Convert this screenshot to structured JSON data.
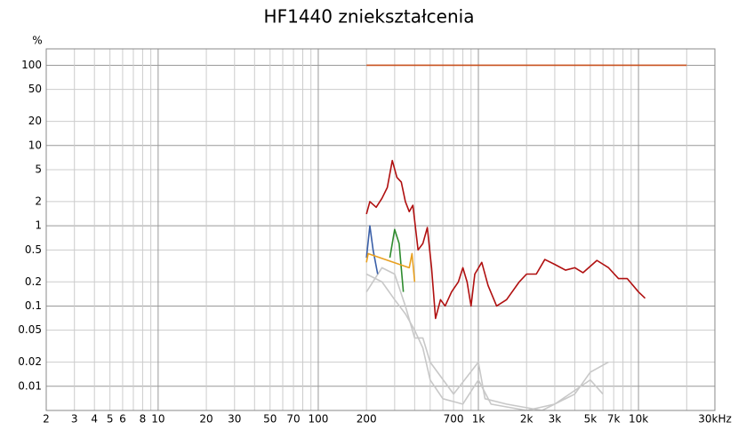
{
  "chart_data": {
    "type": "line",
    "title": "HF1440 zniekształcenia",
    "y_label": "%",
    "log_x": true,
    "log_y": true,
    "grid": true,
    "xlim": [
      2,
      30000
    ],
    "ylim": [
      0.005,
      160
    ],
    "xticks": [
      2,
      3,
      4,
      5,
      6,
      8,
      10,
      20,
      30,
      50,
      70,
      100,
      200,
      700,
      {
        "value": 1000,
        "label": "1k"
      },
      {
        "value": 2000,
        "label": "2k"
      },
      {
        "value": 3000,
        "label": "3k"
      },
      {
        "value": 5000,
        "label": "5k"
      },
      {
        "value": 7000,
        "label": "7k"
      },
      {
        "value": 10000,
        "label": "10k"
      },
      {
        "value": 30000,
        "label": "30kHz"
      }
    ],
    "x_minor_ticks": [
      7,
      9,
      40,
      60,
      80,
      90,
      300,
      400,
      500,
      600,
      800,
      900,
      4000,
      6000,
      8000,
      9000,
      20000
    ],
    "yticks": [
      100,
      50,
      20,
      10,
      5,
      2,
      1,
      0.5,
      0.2,
      0.1,
      0.05,
      0.02,
      0.01
    ],
    "series": [
      {
        "color": "#c8c8c8",
        "x": [
          200,
          250,
          300,
          350,
          400,
          450,
          500,
          600,
          800,
          1000,
          1200,
          2000,
          3000,
          5000,
          6000
        ],
        "values": [
          0.25,
          0.2,
          0.12,
          0.08,
          0.05,
          0.03,
          0.012,
          0.007,
          0.006,
          0.012,
          0.006,
          0.005,
          0.006,
          0.012,
          0.008
        ]
      },
      {
        "color": "#c8c8c8",
        "x": [
          200,
          250,
          300,
          350,
          400,
          450,
          500,
          700,
          1000,
          1100,
          1500,
          2500,
          4000,
          5000,
          6500
        ],
        "values": [
          0.15,
          0.3,
          0.25,
          0.1,
          0.04,
          0.04,
          0.02,
          0.008,
          0.02,
          0.007,
          0.006,
          0.005,
          0.008,
          0.015,
          0.02
        ]
      },
      {
        "color": "#3a5fa8",
        "x": [
          200,
          210,
          220,
          235
        ],
        "values": [
          0.4,
          1,
          0.5,
          0.25
        ]
      },
      {
        "color": "#2e8b2e",
        "x": [
          280,
          300,
          320,
          340
        ],
        "values": [
          0.4,
          0.9,
          0.6,
          0.15
        ]
      },
      {
        "color": "#e8a020",
        "x": [
          200,
          205,
          370,
          385,
          400
        ],
        "values": [
          0.35,
          0.45,
          0.3,
          0.45,
          0.2
        ]
      },
      {
        "color": "#b01010",
        "x": [
          200,
          210,
          230,
          250,
          270,
          290,
          310,
          330,
          350,
          370,
          390,
          420,
          450,
          480,
          510,
          540,
          580,
          620,
          680,
          750,
          800,
          850,
          900,
          950,
          1050,
          1150,
          1300,
          1500,
          1800,
          2000,
          2300,
          2600,
          3000,
          3500,
          4000,
          4500,
          5500,
          6500,
          7500,
          8500,
          10000,
          11000
        ],
        "values": [
          1.4,
          2,
          1.7,
          2.2,
          3,
          6.5,
          4,
          3.5,
          2,
          1.5,
          1.8,
          0.5,
          0.6,
          0.95,
          0.3,
          0.07,
          0.12,
          0.1,
          0.15,
          0.2,
          0.3,
          0.2,
          0.1,
          0.25,
          0.35,
          0.18,
          0.1,
          0.12,
          0.2,
          0.25,
          0.25,
          0.38,
          0.33,
          0.28,
          0.3,
          0.26,
          0.37,
          0.3,
          0.22,
          0.22,
          0.15,
          0.125
        ]
      },
      {
        "color": "#c8501e",
        "x": [
          200,
          20000
        ],
        "values": [
          100,
          100
        ]
      }
    ]
  }
}
